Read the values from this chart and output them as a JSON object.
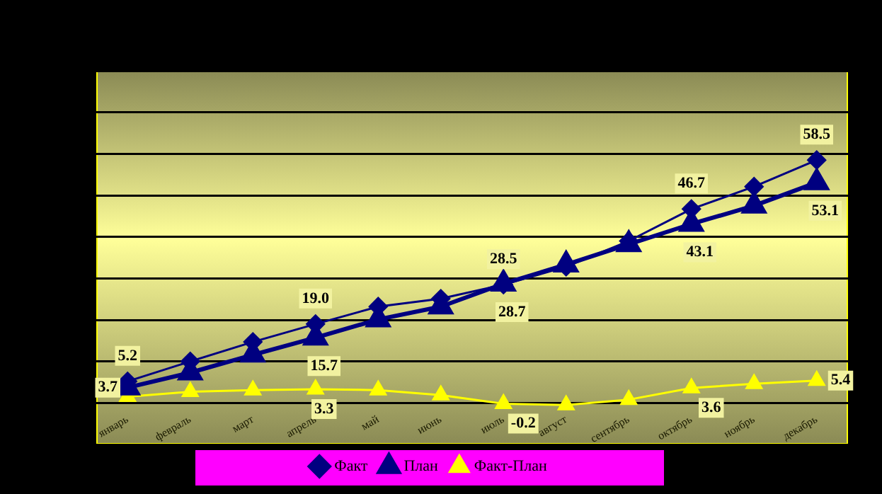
{
  "chart_data": {
    "type": "line",
    "categories": [
      "январь",
      "февраль",
      "март",
      "апрель",
      "май",
      "июнь",
      "июль",
      "август",
      "сентябрь",
      "октябрь",
      "ноябрь",
      "декабрь"
    ],
    "series": [
      {
        "name": "Факт",
        "color": "#000080",
        "marker": "diamond",
        "values": [
          5.2,
          10.0,
          14.7,
          19.0,
          23.2,
          25.1,
          28.5,
          32.8,
          39.0,
          46.7,
          52.1,
          58.5
        ],
        "value_labels": [
          "5.2",
          null,
          null,
          "19.0",
          null,
          null,
          "28.5",
          null,
          null,
          "46.7",
          null,
          "58.5"
        ]
      },
      {
        "name": "План",
        "color": "#000080",
        "marker": "triangle",
        "values": [
          3.7,
          7.3,
          11.6,
          15.7,
          20.1,
          23.2,
          28.7,
          33.3,
          38.2,
          43.1,
          47.5,
          53.1
        ],
        "value_labels": [
          "3.7",
          null,
          null,
          "15.7",
          null,
          null,
          "28.7",
          null,
          null,
          "43.1",
          null,
          "53.1"
        ]
      },
      {
        "name": "Факт-План",
        "color": "#ffff00",
        "marker": "triangle",
        "values": [
          1.5,
          2.7,
          3.1,
          3.3,
          3.1,
          1.9,
          -0.2,
          -0.5,
          0.8,
          3.6,
          4.6,
          5.4
        ],
        "value_labels": [
          null,
          null,
          null,
          "3.3",
          null,
          null,
          "-0.2",
          null,
          null,
          "3.6",
          null,
          "5.4"
        ]
      }
    ],
    "ylim": [
      -10,
      80
    ],
    "yticks": [
      {
        "value": -10,
        "label": null
      },
      {
        "value": 0,
        "label": null
      },
      {
        "value": 10,
        "label": null
      },
      {
        "value": 20,
        "label": null
      },
      {
        "value": 30,
        "label": null
      },
      {
        "value": 40,
        "label": null
      },
      {
        "value": 50,
        "label": null
      },
      {
        "value": 60,
        "label": null
      },
      {
        "value": 70,
        "label": null
      },
      {
        "value": 80,
        "label": null
      }
    ],
    "grid": "y",
    "legend": "bottom",
    "tick_labels": "x",
    "line_style": "solid"
  }
}
